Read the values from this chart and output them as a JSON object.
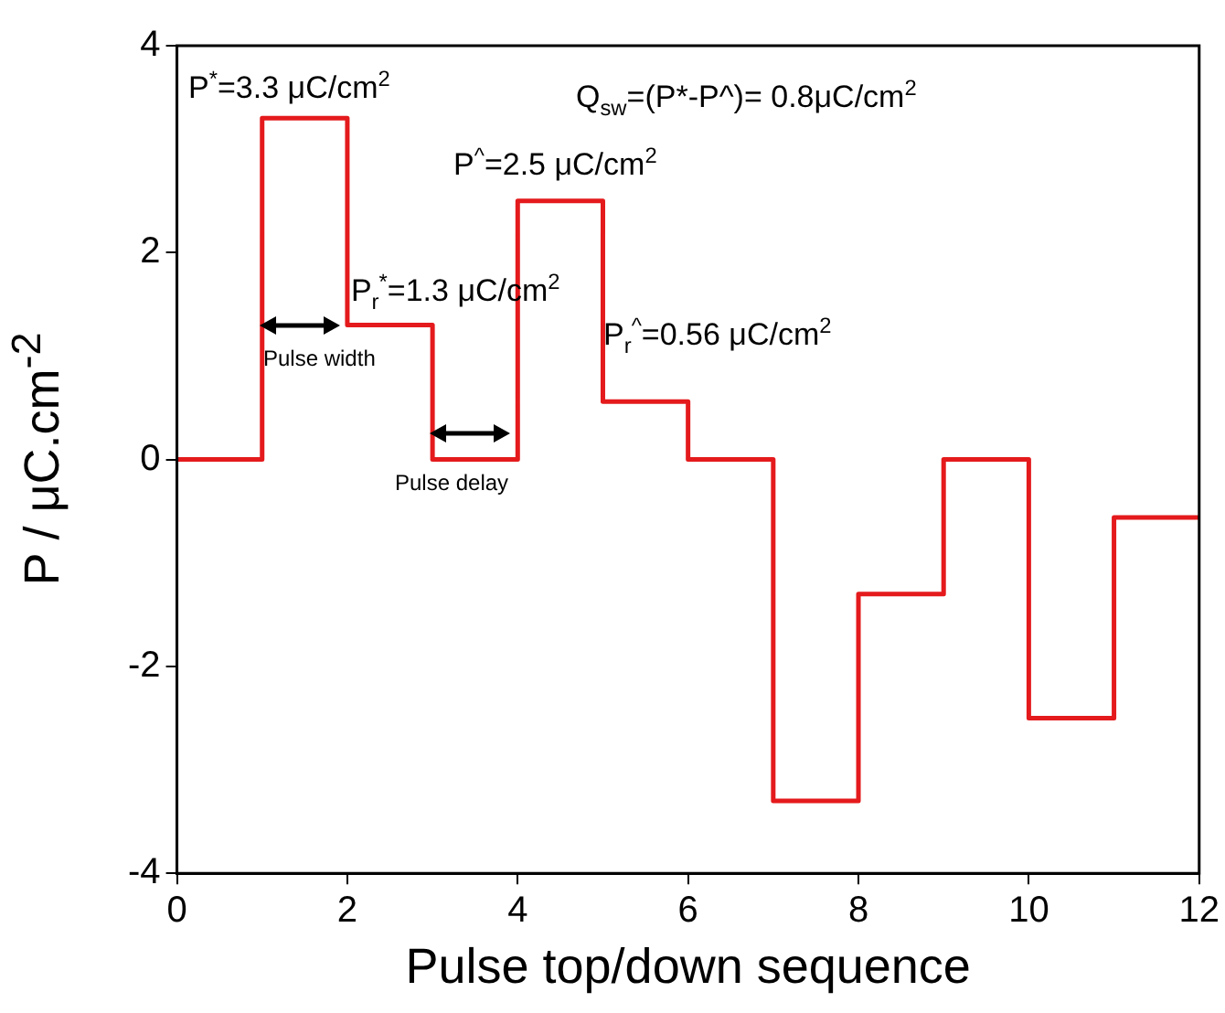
{
  "chart_data": {
    "type": "step",
    "xlabel": "Pulse top/down sequence",
    "ylabel": "P / μC.cm$^{-2}$",
    "x": [
      0,
      1,
      2,
      3,
      4,
      5,
      6,
      7,
      8,
      9,
      10,
      11,
      12
    ],
    "series": [
      {
        "color": "#e41a1c",
        "values": [
          0,
          3.3,
          1.3,
          0,
          2.5,
          0.56,
          0,
          -3.3,
          -1.3,
          0,
          -2.5,
          -0.56,
          -0.56
        ]
      }
    ],
    "xlim": [
      0,
      12
    ],
    "xticks": [
      0,
      2,
      4,
      6,
      8,
      10,
      12
    ],
    "ylim": [
      -4,
      4
    ],
    "yticks": [
      -4,
      -2,
      0,
      2,
      4
    ],
    "grid": false,
    "legend": false,
    "marker": "none",
    "line_style": "solid",
    "annotations": [
      "P$^{*}$=3.3 μC/cm$^{2}$",
      "Q$_{sw}$=(P*-P^)= 0.8μC/cm$^{2}$",
      "P$^{^}$=2.5 μC/cm$^{2}$",
      {
        "text": "P$_{r}$$^{*}$=1.3 μC/cm$^{2}$",
        "x": 2.5,
        "y": 1.3
      },
      "P$_{r}$$^{^}$=0.56 μC/cm$^{2}$",
      "Pulse width",
      "Pulse delay"
    ]
  }
}
